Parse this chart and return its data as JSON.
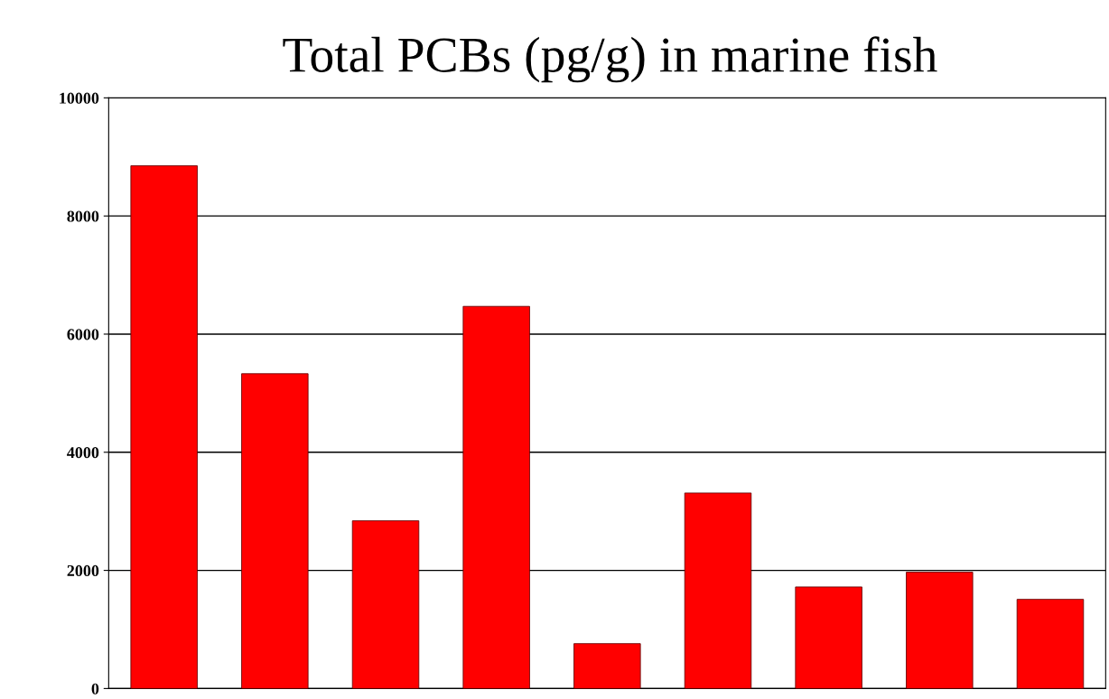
{
  "chart_data": {
    "type": "bar",
    "title": "Total PCBs (pg/g) in marine fish",
    "categories": [
      null,
      null,
      null,
      null,
      null,
      null,
      null,
      null,
      null
    ],
    "values": [
      8850,
      5330,
      2840,
      6470,
      760,
      3310,
      1720,
      1970,
      1510
    ],
    "color": "#ff0000",
    "ylim": [
      0,
      10000
    ],
    "yticks": [
      0,
      2000,
      4000,
      6000,
      8000,
      10000
    ],
    "grid": "y"
  }
}
